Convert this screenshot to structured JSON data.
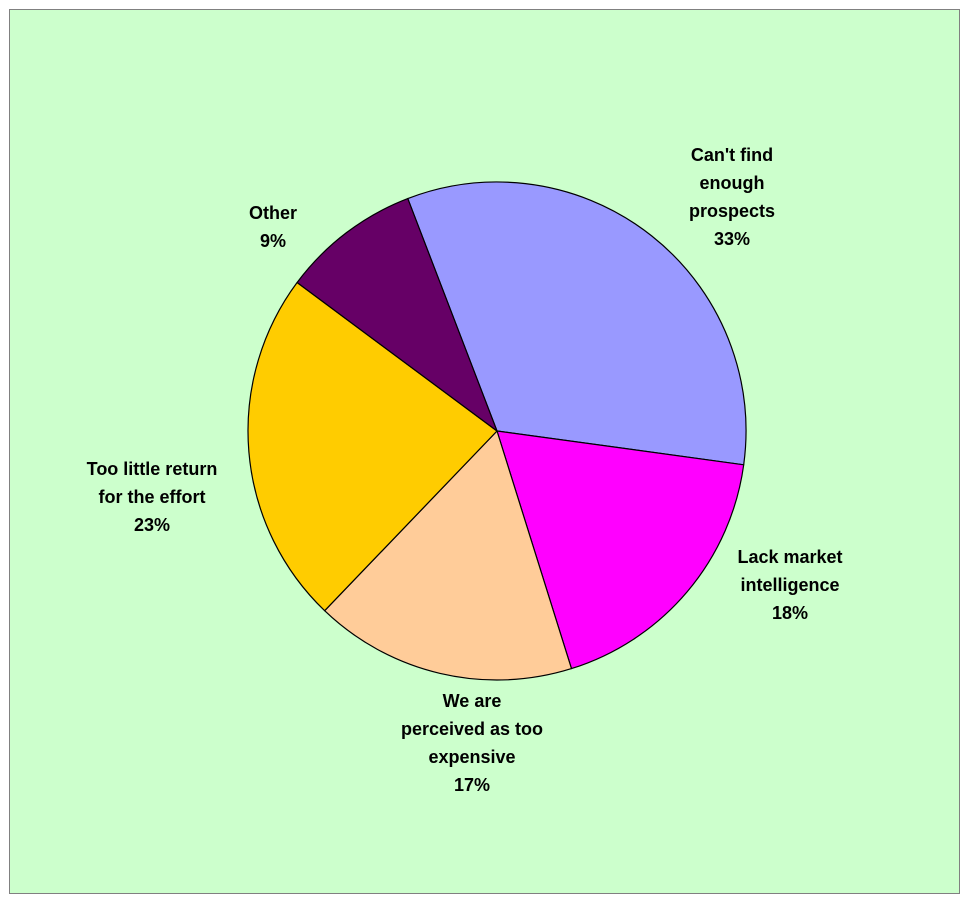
{
  "chart_data": {
    "type": "pie",
    "title": "",
    "background_color": "#ccffcc",
    "border_color": "#808080",
    "start_angle_deg": -21,
    "direction": "clockwise",
    "slices": [
      {
        "label": "Can't find enough prospects",
        "value": 33,
        "value_label": "33%",
        "color": "#9999ff",
        "label_lines": [
          "Can't find",
          "enough",
          "prospects",
          "33%"
        ]
      },
      {
        "label": "Lack market intelligence",
        "value": 18,
        "value_label": "18%",
        "color": "#ff00ff",
        "label_lines": [
          "Lack market",
          "intelligence",
          "18%"
        ]
      },
      {
        "label": "We are perceived as too expensive",
        "value": 17,
        "value_label": "17%",
        "color": "#ffcc99",
        "label_lines": [
          "We are",
          "perceived as too",
          "expensive",
          "17%"
        ]
      },
      {
        "label": "Too little return for the effort",
        "value": 23,
        "value_label": "23%",
        "color": "#ffcc00",
        "label_lines": [
          "Too little return",
          "for the effort",
          "23%"
        ]
      },
      {
        "label": "Other",
        "value": 9,
        "value_label": "9%",
        "color": "#660066",
        "label_lines": [
          "Other",
          "9%"
        ]
      }
    ]
  }
}
